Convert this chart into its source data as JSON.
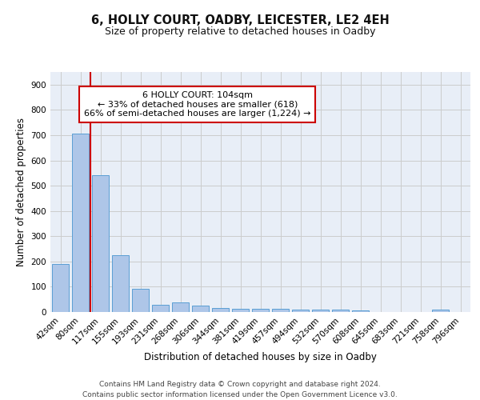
{
  "title1": "6, HOLLY COURT, OADBY, LEICESTER, LE2 4EH",
  "title2": "Size of property relative to detached houses in Oadby",
  "xlabel": "Distribution of detached houses by size in Oadby",
  "ylabel": "Number of detached properties",
  "categories": [
    "42sqm",
    "80sqm",
    "117sqm",
    "155sqm",
    "193sqm",
    "231sqm",
    "268sqm",
    "306sqm",
    "344sqm",
    "381sqm",
    "419sqm",
    "457sqm",
    "494sqm",
    "532sqm",
    "570sqm",
    "608sqm",
    "645sqm",
    "683sqm",
    "721sqm",
    "758sqm",
    "796sqm"
  ],
  "values": [
    190,
    707,
    540,
    225,
    92,
    27,
    37,
    25,
    15,
    12,
    12,
    12,
    8,
    10,
    8,
    6,
    0,
    0,
    0,
    8,
    0
  ],
  "bar_color": "#aec6e8",
  "bar_edge_color": "#5a9fd4",
  "red_line_index": 1.5,
  "annotation_text": "6 HOLLY COURT: 104sqm\n← 33% of detached houses are smaller (618)\n66% of semi-detached houses are larger (1,224) →",
  "annotation_box_color": "#ffffff",
  "annotation_box_edge_color": "#cc0000",
  "ylim": [
    0,
    950
  ],
  "yticks": [
    0,
    100,
    200,
    300,
    400,
    500,
    600,
    700,
    800,
    900
  ],
  "grid_color": "#cccccc",
  "background_color": "#e8eef7",
  "footer_line1": "Contains HM Land Registry data © Crown copyright and database right 2024.",
  "footer_line2": "Contains public sector information licensed under the Open Government Licence v3.0.",
  "title1_fontsize": 10.5,
  "title2_fontsize": 9,
  "axis_label_fontsize": 8.5,
  "tick_fontsize": 7.5,
  "annotation_fontsize": 8,
  "footer_fontsize": 6.5
}
